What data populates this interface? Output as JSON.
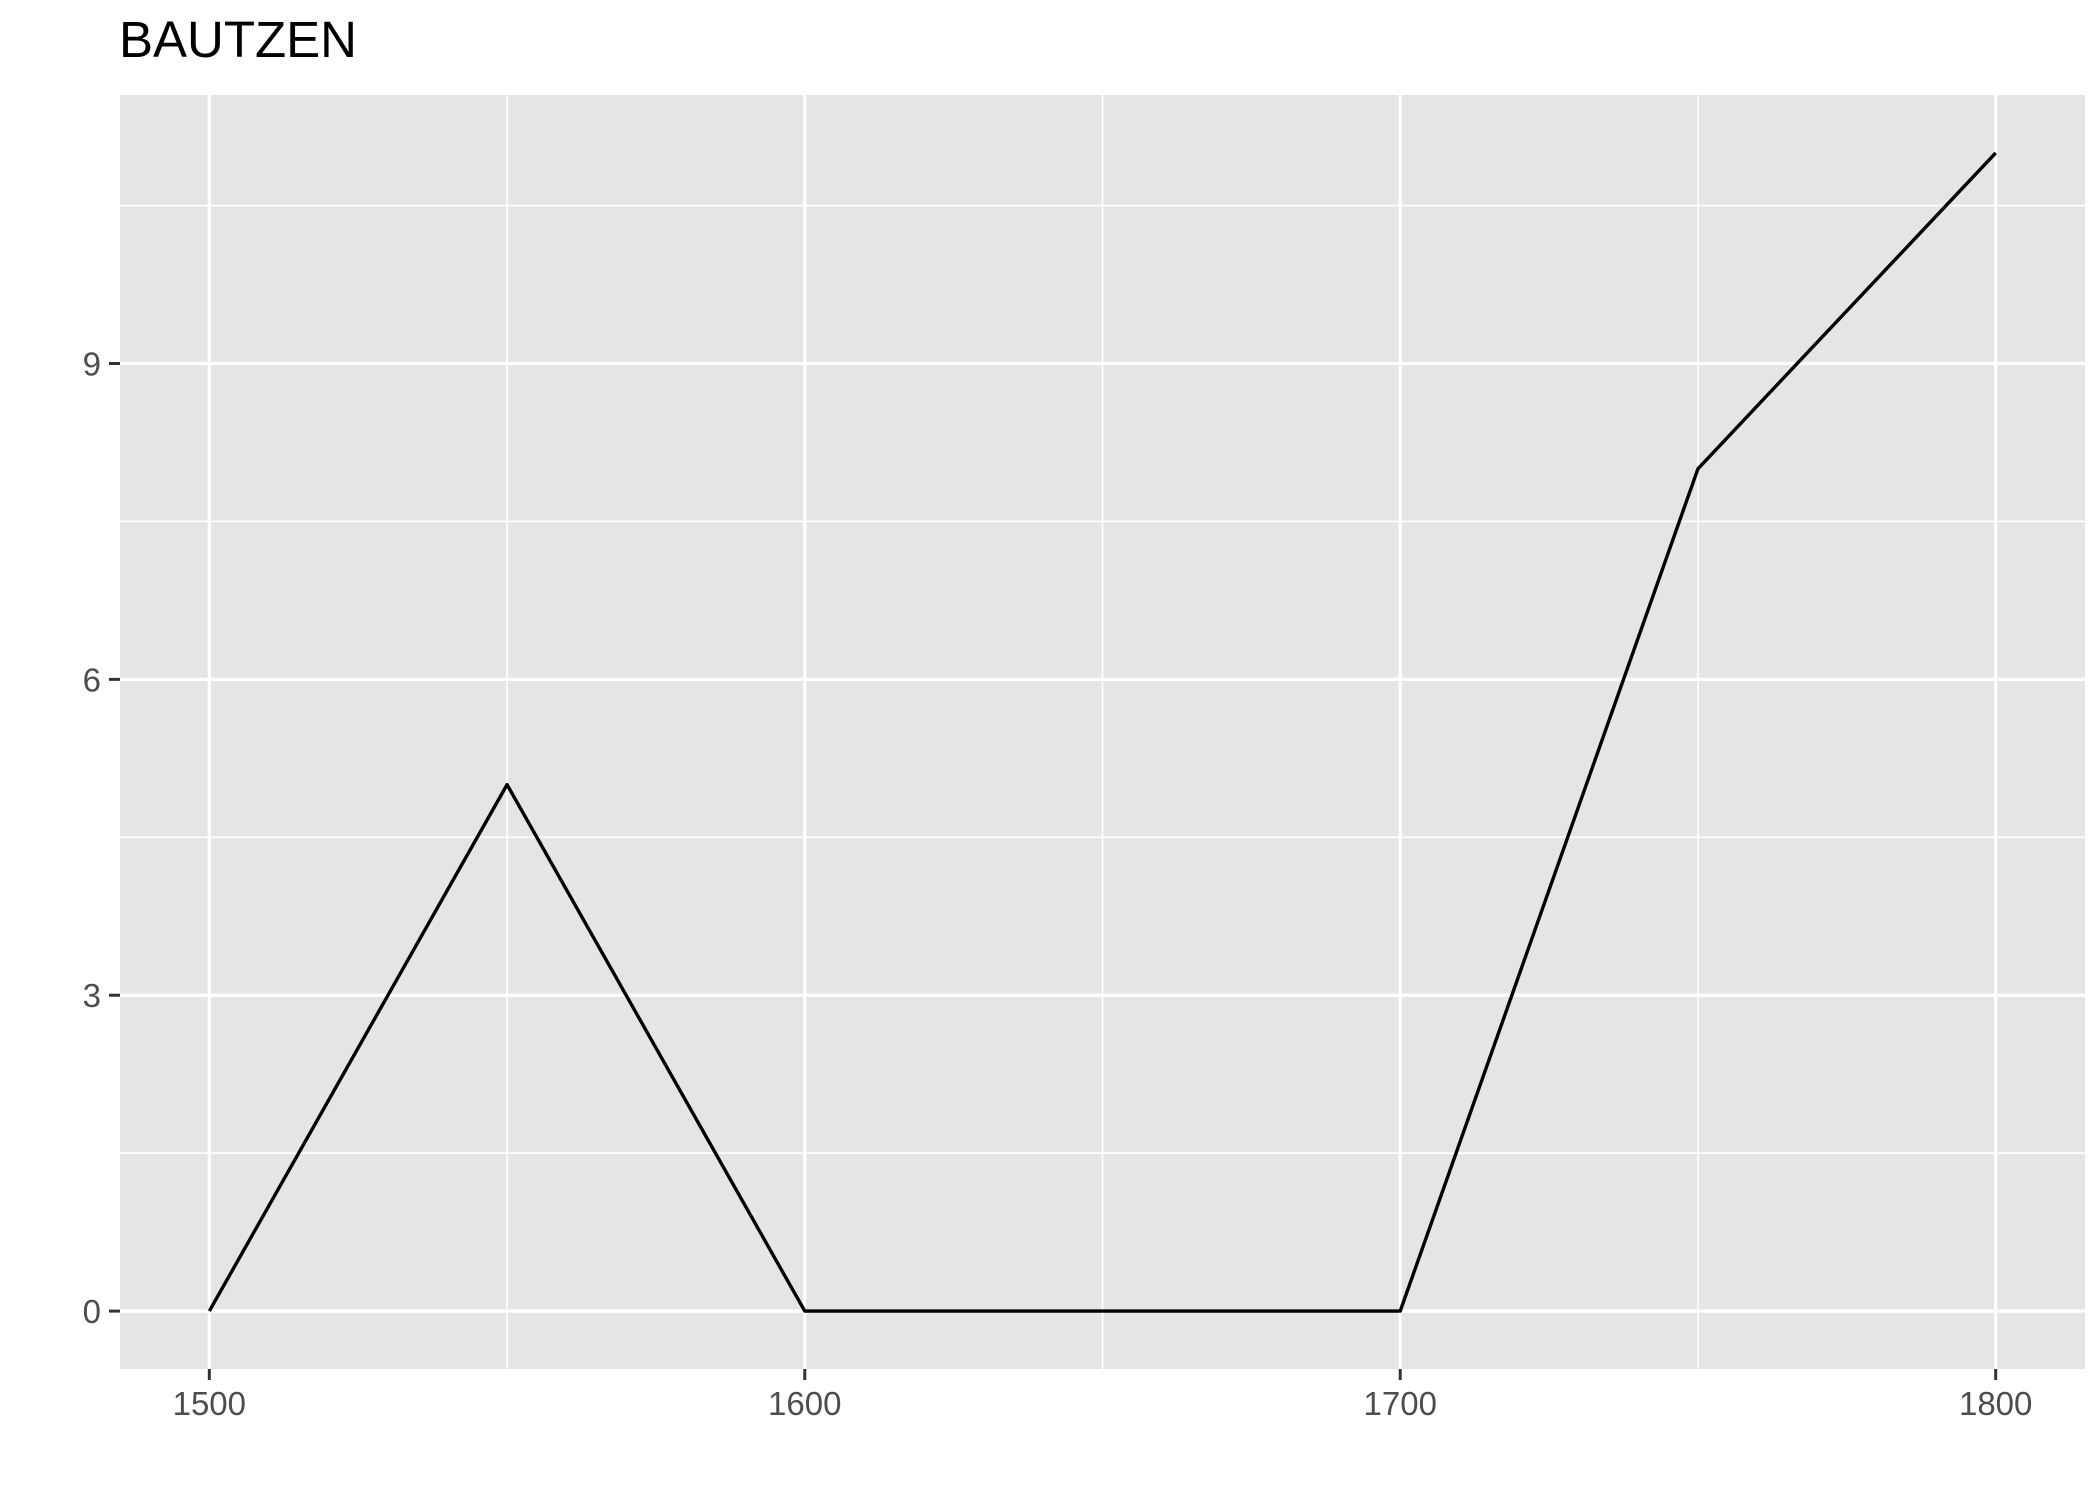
{
  "chart_data": {
    "type": "line",
    "title": "BAUTZEN",
    "xlabel": "",
    "ylabel": "",
    "x": [
      1500,
      1550,
      1600,
      1650,
      1700,
      1750,
      1800
    ],
    "series": [
      {
        "values": [
          0,
          5,
          0,
          0,
          0,
          8,
          11
        ]
      }
    ],
    "xlim": [
      1485,
      1815
    ],
    "ylim": [
      -0.55,
      11.55
    ],
    "x_ticks": [
      1500,
      1600,
      1700,
      1800
    ],
    "x_tick_labels": [
      "1500",
      "1600",
      "1700",
      "1800"
    ],
    "x_minor_ticks": [
      1550,
      1650,
      1750
    ],
    "y_ticks": [
      0,
      3,
      6,
      9
    ],
    "y_tick_labels": [
      "0",
      "3",
      "6",
      "9"
    ],
    "y_minor_ticks": [
      1.5,
      4.5,
      7.5,
      10.5
    ],
    "grid": true,
    "legend": "none",
    "colors": {
      "panel_background": "#e5e5e5",
      "grid": "#ffffff",
      "line": "#000000",
      "tick_text": "#4d4d4d",
      "tick_mark": "#333333"
    }
  }
}
